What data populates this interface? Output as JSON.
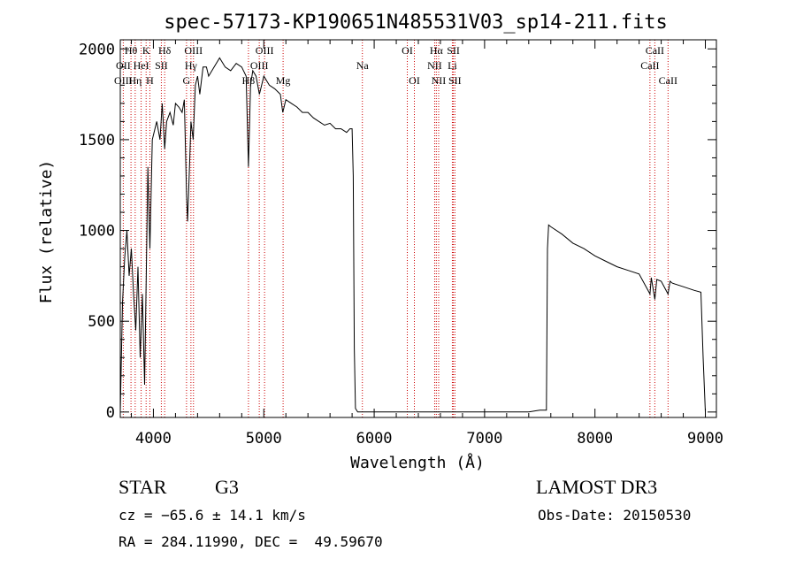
{
  "chart_data": {
    "type": "line",
    "title": "spec-57173-KP190651N485531V03_sp14-211.fits",
    "xlabel": "Wavelength (Å)",
    "ylabel": "Flux (relative)",
    "xlim": [
      3700,
      9100
    ],
    "ylim": [
      -30,
      2050
    ],
    "xticks": [
      4000,
      5000,
      6000,
      7000,
      8000,
      9000
    ],
    "yticks": [
      0,
      500,
      1000,
      1500,
      2000
    ],
    "grid": false,
    "series": [
      {
        "name": "flux",
        "x": [
          3700,
          3720,
          3740,
          3760,
          3780,
          3800,
          3820,
          3840,
          3860,
          3880,
          3900,
          3920,
          3934,
          3950,
          3968,
          3990,
          4010,
          4030,
          4060,
          4080,
          4102,
          4120,
          4150,
          4180,
          4200,
          4230,
          4260,
          4280,
          4300,
          4310,
          4330,
          4340,
          4360,
          4380,
          4400,
          4420,
          4450,
          4480,
          4500,
          4550,
          4600,
          4650,
          4700,
          4750,
          4800,
          4840,
          4861,
          4880,
          4900,
          4930,
          4960,
          5000,
          5050,
          5100,
          5150,
          5172,
          5200,
          5250,
          5300,
          5350,
          5400,
          5450,
          5500,
          5550,
          5600,
          5650,
          5700,
          5750,
          5780,
          5800,
          5810,
          5820,
          5830,
          5850,
          5900,
          6000,
          6200,
          6400,
          6600,
          6800,
          7000,
          7200,
          7400,
          7500,
          7560,
          7570,
          7580,
          7600,
          7700,
          7800,
          7900,
          8000,
          8100,
          8200,
          8300,
          8400,
          8498,
          8510,
          8542,
          8560,
          8600,
          8662,
          8680,
          8700,
          8800,
          8900,
          8960,
          8980,
          9000
        ],
        "values": [
          0,
          600,
          850,
          1000,
          750,
          900,
          650,
          450,
          800,
          300,
          650,
          150,
          700,
          1350,
          900,
          1500,
          1550,
          1600,
          1500,
          1700,
          1450,
          1600,
          1650,
          1580,
          1700,
          1680,
          1650,
          1720,
          1200,
          1050,
          1400,
          1600,
          1500,
          1800,
          1850,
          1750,
          1900,
          1900,
          1850,
          1900,
          1950,
          1900,
          1880,
          1920,
          1900,
          1850,
          1350,
          1800,
          1880,
          1850,
          1750,
          1850,
          1800,
          1780,
          1750,
          1650,
          1720,
          1700,
          1680,
          1650,
          1650,
          1620,
          1600,
          1580,
          1590,
          1560,
          1560,
          1540,
          1560,
          1560,
          1300,
          350,
          20,
          0,
          0,
          0,
          0,
          0,
          0,
          0,
          0,
          0,
          0,
          10,
          10,
          900,
          1030,
          1020,
          980,
          930,
          900,
          860,
          830,
          800,
          780,
          760,
          650,
          740,
          620,
          730,
          720,
          650,
          720,
          710,
          690,
          670,
          660,
          300,
          0
        ]
      }
    ],
    "line_labels": [
      {
        "label": "Hθ",
        "x": 3797,
        "row": 1
      },
      {
        "label": "OII",
        "x": 3727,
        "row": 2
      },
      {
        "label": "OIII",
        "x": 3727,
        "row": 3
      },
      {
        "label": "K",
        "x": 3934,
        "row": 1
      },
      {
        "label": "HeI",
        "x": 3889,
        "row": 2
      },
      {
        "label": "Hη",
        "x": 3835,
        "row": 3
      },
      {
        "label": "H",
        "x": 3968,
        "row": 3
      },
      {
        "label": "Hδ",
        "x": 4102,
        "row": 1
      },
      {
        "label": "SII",
        "x": 4072,
        "row": 2
      },
      {
        "label": "OIII",
        "x": 4363,
        "row": 1
      },
      {
        "label": "Hγ",
        "x": 4340,
        "row": 2
      },
      {
        "label": "G",
        "x": 4300,
        "row": 3
      },
      {
        "label": "OIII",
        "x": 5007,
        "row": 1
      },
      {
        "label": "OIII",
        "x": 4959,
        "row": 2
      },
      {
        "label": "Hβ",
        "x": 4861,
        "row": 3
      },
      {
        "label": "Mg",
        "x": 5175,
        "row": 3
      },
      {
        "label": "Na",
        "x": 5893,
        "row": 2
      },
      {
        "label": "OI",
        "x": 6300,
        "row": 1
      },
      {
        "label": "OI",
        "x": 6364,
        "row": 3
      },
      {
        "label": "Hα",
        "x": 6563,
        "row": 1
      },
      {
        "label": "SII",
        "x": 6717,
        "row": 1
      },
      {
        "label": "NII",
        "x": 6548,
        "row": 2
      },
      {
        "label": "Li",
        "x": 6708,
        "row": 2
      },
      {
        "label": "NII",
        "x": 6584,
        "row": 3
      },
      {
        "label": "SII",
        "x": 6731,
        "row": 3
      },
      {
        "label": "CaII",
        "x": 8542,
        "row": 1
      },
      {
        "label": "CaII",
        "x": 8498,
        "row": 2
      },
      {
        "label": "CaII",
        "x": 8662,
        "row": 3
      }
    ],
    "line_markers": [
      3727,
      3797,
      3835,
      3889,
      3934,
      3968,
      4072,
      4102,
      4300,
      4340,
      4363,
      4861,
      4959,
      5007,
      5175,
      5893,
      6300,
      6364,
      6548,
      6563,
      6584,
      6708,
      6717,
      6731,
      8498,
      8542,
      8662
    ],
    "colors": {
      "marker": "#cc0000",
      "line": "#000000"
    }
  },
  "info": {
    "object_class": "STAR",
    "subclass": "G3",
    "survey": "LAMOST DR3",
    "cz": "cz = −65.6 ± 14.1 km/s",
    "obs_date": "Obs-Date: 20150530",
    "coords": "RA = 284.11990, DEC =  49.59670"
  }
}
